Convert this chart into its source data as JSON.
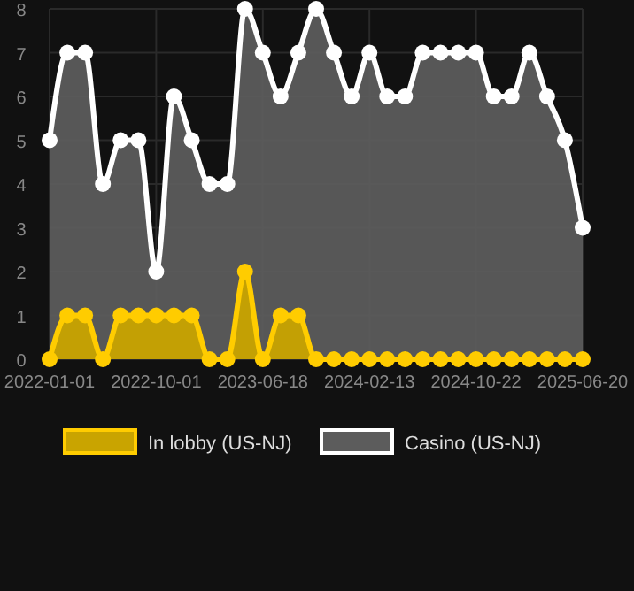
{
  "chart_data": {
    "type": "area",
    "categories": [
      "2022-01-01",
      null,
      null,
      null,
      null,
      null,
      "2022-10-01",
      null,
      null,
      null,
      null,
      null,
      "2023-06-18",
      null,
      null,
      null,
      null,
      null,
      "2024-02-13",
      null,
      null,
      null,
      null,
      null,
      "2024-10-22",
      null,
      null,
      null,
      null,
      null,
      "2025-06-20"
    ],
    "series": [
      {
        "name": "In lobby (US-NJ)",
        "color": "#ffcc00",
        "values": [
          0,
          1,
          1,
          0,
          1,
          1,
          1,
          1,
          1,
          0,
          0,
          2,
          0,
          1,
          1,
          0,
          0,
          0,
          0,
          0,
          0,
          0,
          0,
          0,
          0,
          0,
          0,
          0,
          0,
          0,
          0
        ]
      },
      {
        "name": "Casino (US-NJ)",
        "color": "#ffffff",
        "values": [
          5,
          7,
          7,
          4,
          5,
          5,
          2,
          6,
          5,
          4,
          4,
          8,
          7,
          6,
          7,
          8,
          7,
          6,
          7,
          6,
          6,
          7,
          7,
          7,
          7,
          6,
          6,
          7,
          6,
          5,
          3
        ]
      }
    ],
    "ylim": [
      0,
      8
    ],
    "yticks": [
      0,
      1,
      2,
      3,
      4,
      5,
      6,
      7,
      8
    ],
    "grid": true,
    "legend": "bottom",
    "marker": "circle"
  }
}
